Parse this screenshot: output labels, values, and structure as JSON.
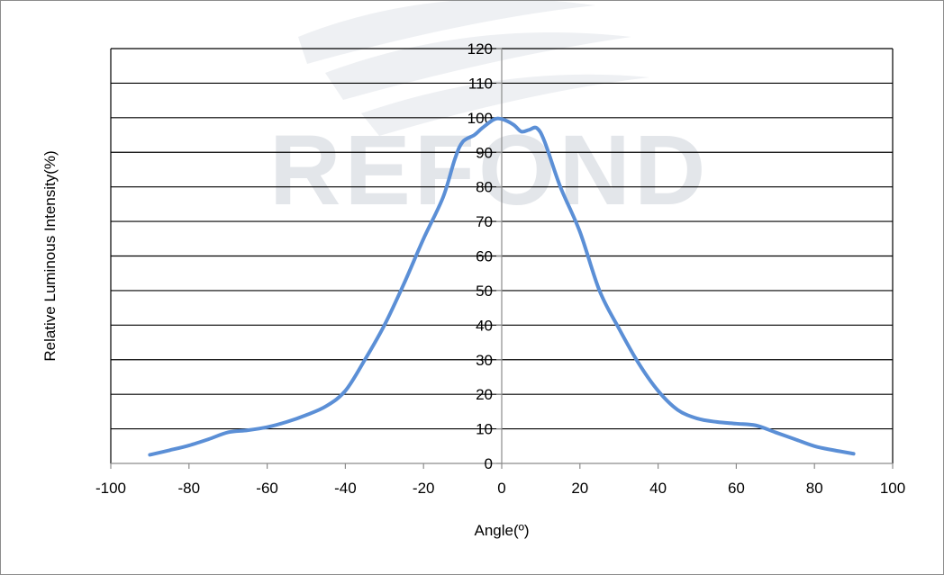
{
  "chart_data": {
    "type": "line",
    "title": "",
    "xlabel": "Angle(º)",
    "ylabel": "Relative Luminous Intensity(%)",
    "xlim": [
      -100,
      100
    ],
    "ylim": [
      0,
      120
    ],
    "xticks": [
      -100,
      -80,
      -60,
      -40,
      -20,
      0,
      20,
      40,
      60,
      80,
      100
    ],
    "yticks": [
      0,
      10,
      20,
      30,
      40,
      50,
      60,
      70,
      80,
      90,
      100,
      110,
      120
    ],
    "xtick_labels": [
      "-100",
      "-80",
      "-60",
      "-40",
      "-20",
      "0",
      "20",
      "40",
      "60",
      "80",
      "100"
    ],
    "ytick_labels": [
      "0",
      "10",
      "20",
      "30",
      "40",
      "50",
      "60",
      "70",
      "80",
      "90",
      "100",
      "110",
      "120"
    ],
    "grid": "horizontal",
    "legend": "none",
    "series": [
      {
        "color": "#5b8fd6",
        "x": [
          -90,
          -85,
          -80,
          -75,
          -70,
          -65,
          -60,
          -55,
          -50,
          -45,
          -40,
          -35,
          -30,
          -25,
          -20,
          -15,
          -12,
          -10,
          -7,
          -5,
          -2,
          0,
          3,
          5,
          7,
          9,
          11,
          15,
          20,
          25,
          30,
          35,
          40,
          45,
          50,
          55,
          60,
          65,
          70,
          75,
          80,
          85,
          90
        ],
        "y": [
          2.5,
          3.8,
          5.2,
          7,
          9,
          9.6,
          10.5,
          12,
          14,
          16.5,
          21,
          30,
          40,
          52,
          65,
          77,
          88,
          93,
          95,
          97,
          99.5,
          99.6,
          98,
          96,
          96.5,
          97,
          93,
          80,
          67,
          50,
          39,
          29,
          21,
          15.5,
          13,
          12,
          11.5,
          11,
          9,
          7,
          5,
          3.8,
          2.8
        ]
      }
    ]
  },
  "watermark": {
    "text": "REFOND"
  }
}
